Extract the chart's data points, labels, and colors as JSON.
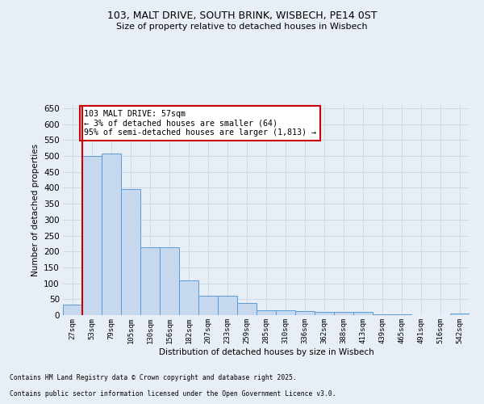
{
  "title_line1": "103, MALT DRIVE, SOUTH BRINK, WISBECH, PE14 0ST",
  "title_line2": "Size of property relative to detached houses in Wisbech",
  "xlabel": "Distribution of detached houses by size in Wisbech",
  "ylabel": "Number of detached properties",
  "categories": [
    "27sqm",
    "53sqm",
    "79sqm",
    "105sqm",
    "130sqm",
    "156sqm",
    "182sqm",
    "207sqm",
    "233sqm",
    "259sqm",
    "285sqm",
    "310sqm",
    "336sqm",
    "362sqm",
    "388sqm",
    "413sqm",
    "439sqm",
    "465sqm",
    "491sqm",
    "516sqm",
    "542sqm"
  ],
  "values": [
    32,
    500,
    508,
    395,
    212,
    212,
    110,
    62,
    62,
    38,
    16,
    15,
    12,
    10,
    10,
    10,
    3,
    3,
    0,
    1,
    4
  ],
  "bar_color": "#c5d8ed",
  "bar_edge_color": "#5b9bd5",
  "grid_color": "#d0d8e8",
  "bg_color": "#e8eef5",
  "vline_color": "#cc0000",
  "annotation_text": "103 MALT DRIVE: 57sqm\n← 3% of detached houses are smaller (64)\n95% of semi-detached houses are larger (1,813) →",
  "annotation_box_color": "#ffffff",
  "annotation_box_edge": "#cc0000",
  "footer_line1": "Contains HM Land Registry data © Crown copyright and database right 2025.",
  "footer_line2": "Contains public sector information licensed under the Open Government Licence v3.0.",
  "ylim": [
    0,
    660
  ],
  "yticks": [
    0,
    50,
    100,
    150,
    200,
    250,
    300,
    350,
    400,
    450,
    500,
    550,
    600,
    650
  ]
}
